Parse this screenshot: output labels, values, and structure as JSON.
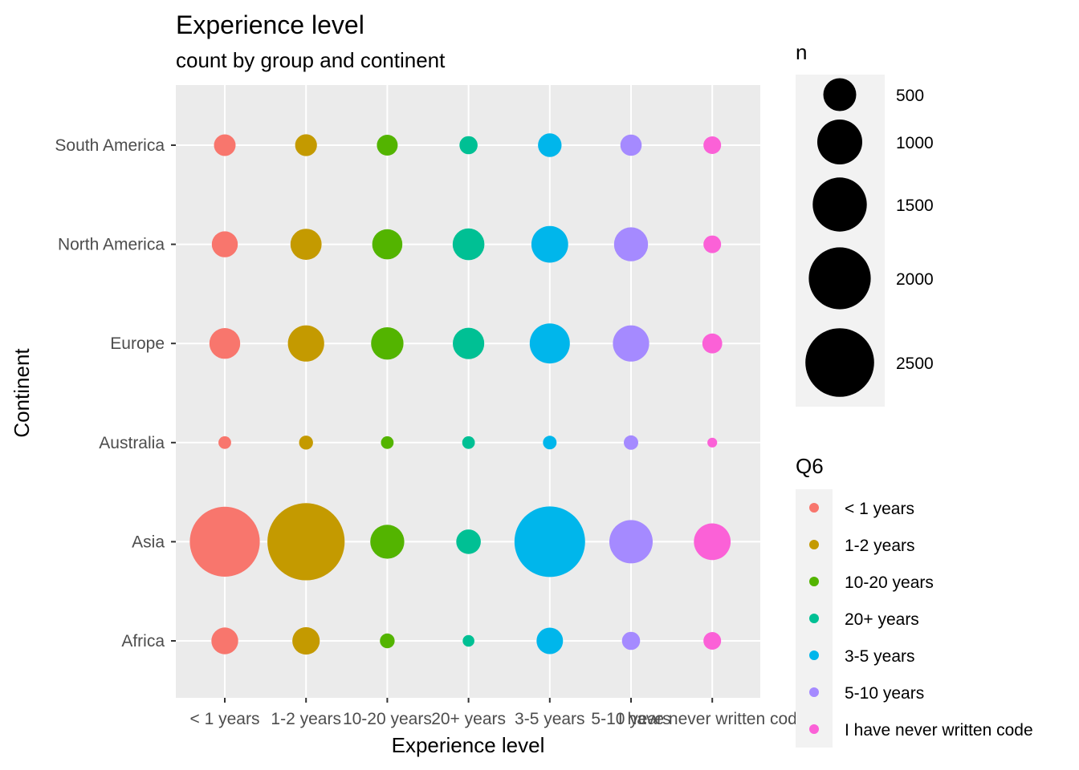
{
  "chart_data": {
    "type": "scatter",
    "title": "Experience level",
    "subtitle": "count by group and continent",
    "xlabel": "Experience level",
    "ylabel": "Continent",
    "categories": [
      "< 1 years",
      "1-2 years",
      "10-20 years",
      "20+ years",
      "3-5 years",
      "5-10 years",
      "I have never written code"
    ],
    "continents": [
      "Africa",
      "Asia",
      "Australia",
      "Europe",
      "North America",
      "South America"
    ],
    "series": [
      {
        "name": "< 1 years",
        "color": "#F8766D",
        "values": {
          "Africa": 310,
          "Asia": 2600,
          "Australia": 45,
          "Europe": 430,
          "North America": 290,
          "South America": 185
        }
      },
      {
        "name": "1-2 years",
        "color": "#C49A00",
        "values": {
          "Africa": 330,
          "Asia": 3200,
          "Australia": 60,
          "Europe": 620,
          "North America": 440,
          "South America": 190
        }
      },
      {
        "name": "10-20 years",
        "color": "#53B400",
        "values": {
          "Africa": 70,
          "Asia": 540,
          "Australia": 45,
          "Europe": 480,
          "North America": 410,
          "South America": 170
        }
      },
      {
        "name": "20+ years",
        "color": "#00C094",
        "values": {
          "Africa": 35,
          "Asia": 250,
          "Australia": 45,
          "Europe": 450,
          "North America": 460,
          "South America": 120
        }
      },
      {
        "name": "3-5 years",
        "color": "#00B6EB",
        "values": {
          "Africa": 300,
          "Asia": 2650,
          "Australia": 55,
          "Europe": 780,
          "North America": 640,
          "South America": 230
        }
      },
      {
        "name": "5-10 years",
        "color": "#A58AFF",
        "values": {
          "Africa": 120,
          "Asia": 920,
          "Australia": 65,
          "Europe": 620,
          "North America": 540,
          "South America": 180
        }
      },
      {
        "name": "I have never written code",
        "color": "#FB61D7",
        "values": {
          "Africa": 110,
          "Asia": 640,
          "Australia": 20,
          "Europe": 150,
          "North America": 110,
          "South America": 110
        }
      }
    ],
    "size_legend": {
      "title": "n",
      "breaks": [
        500,
        1000,
        1500,
        2000,
        2500
      ]
    },
    "color_legend": {
      "title": "Q6"
    },
    "grid": true,
    "legend_position": "right"
  }
}
